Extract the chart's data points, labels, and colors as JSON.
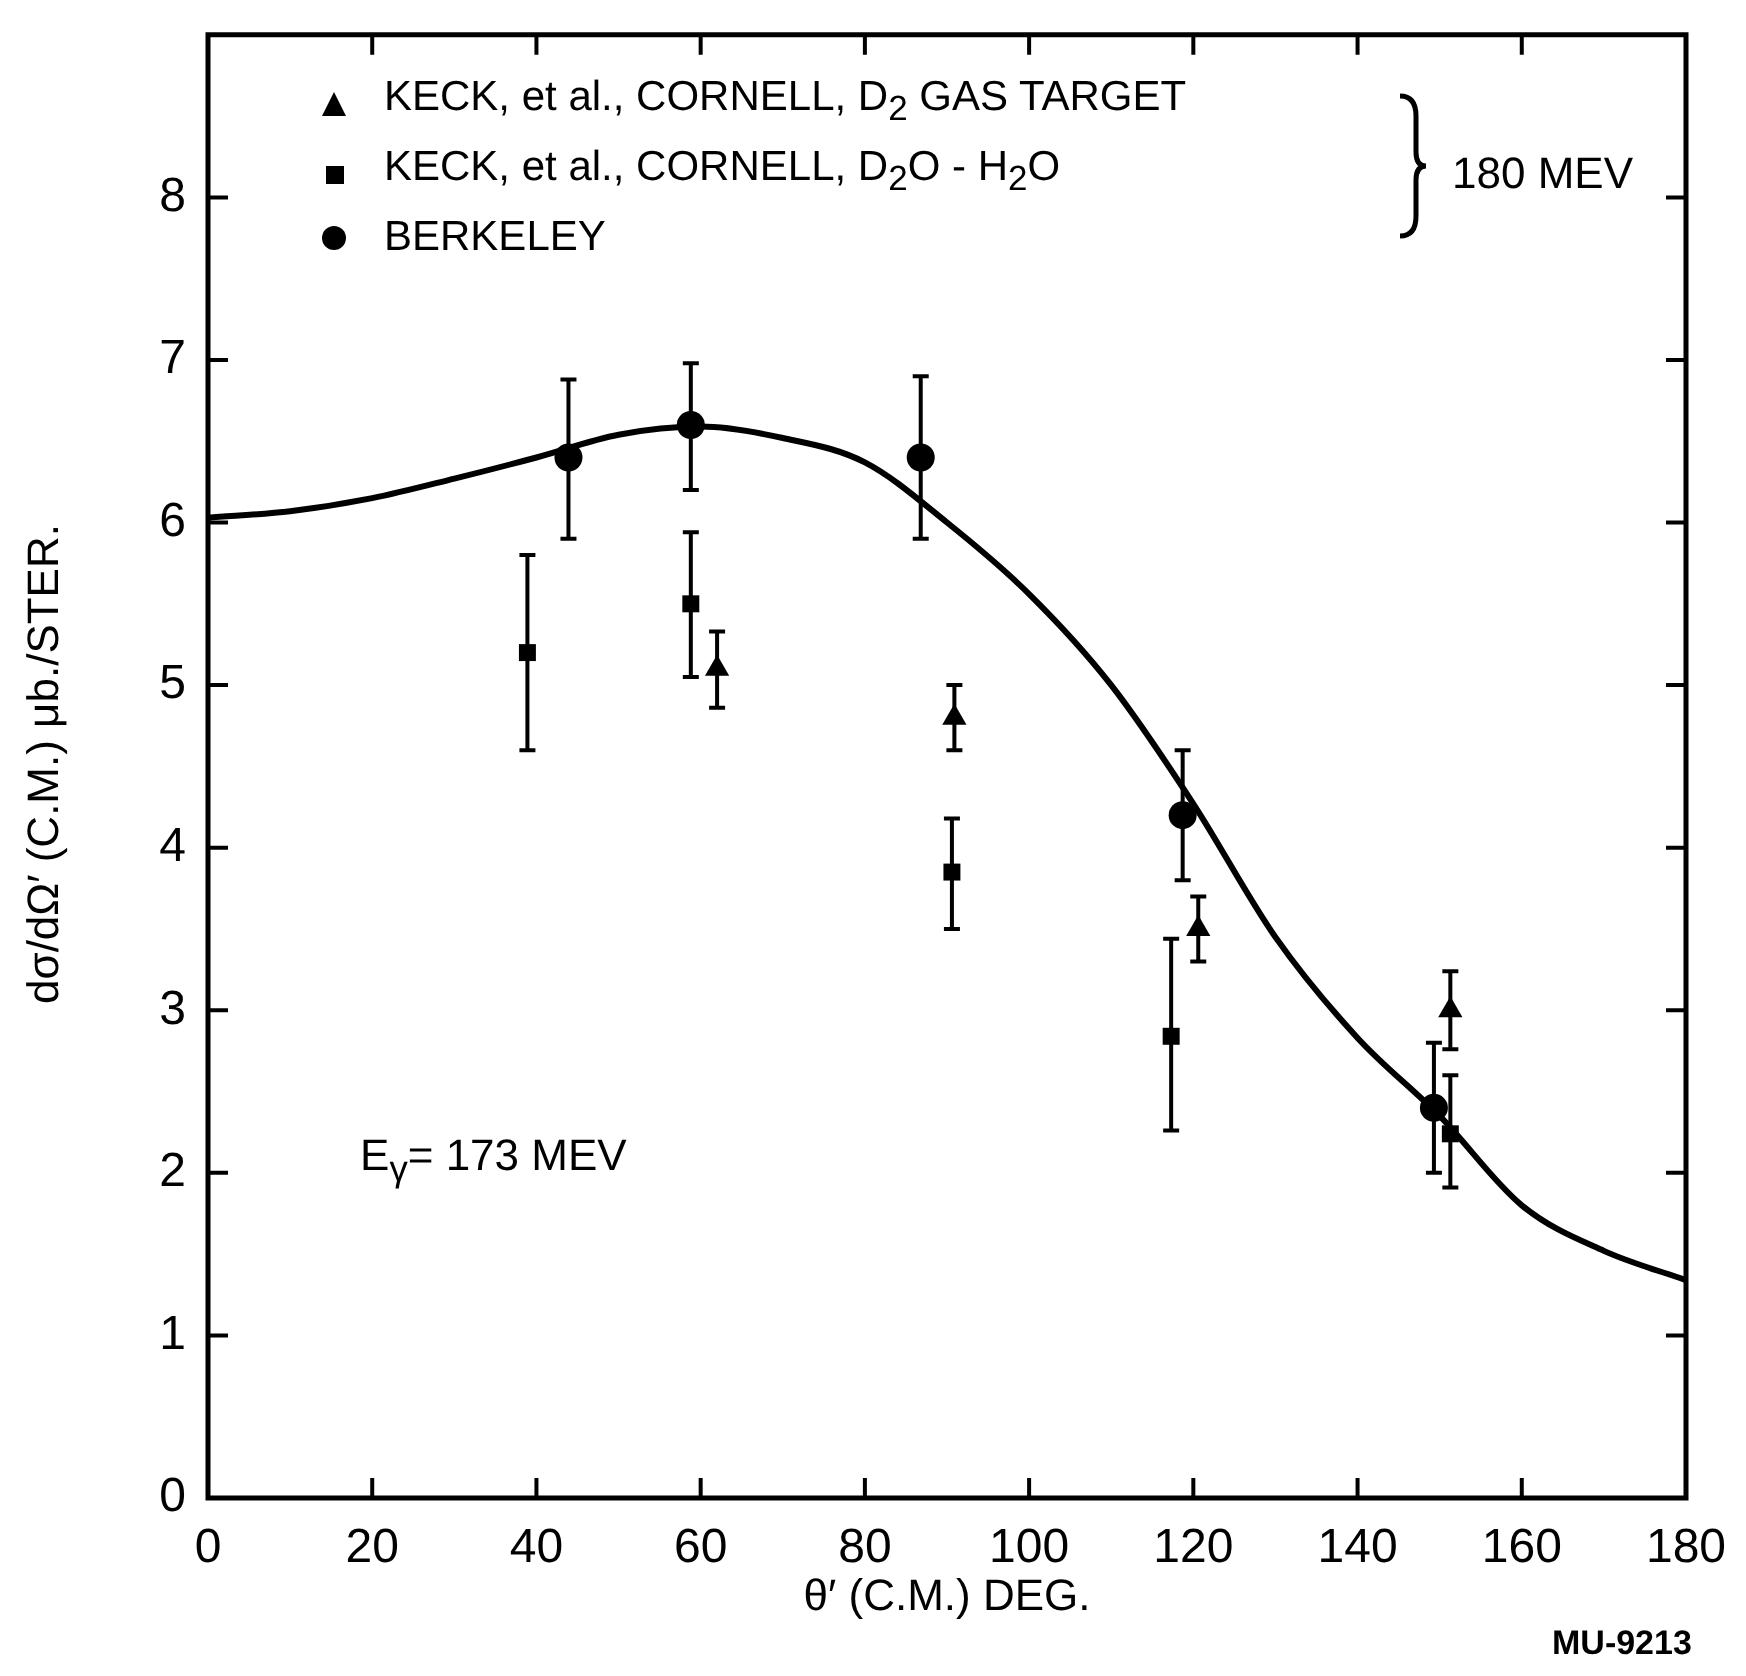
{
  "chart_data": {
    "type": "scatter",
    "xlabel": "θ′ (C.M.) DEG.",
    "ylabel": "dσ/dΩ′ (C.M.) μb./STER.",
    "xlim": [
      0,
      180
    ],
    "xticks": [
      0,
      20,
      40,
      60,
      80,
      100,
      120,
      140,
      160,
      180
    ],
    "ylim": [
      0,
      9
    ],
    "yticks": [
      0,
      1,
      2,
      3,
      4,
      5,
      6,
      7,
      8
    ],
    "grid": false,
    "legend": "top left",
    "annotations": [
      "180 MEV",
      "E$_{γ}$= 173 MEV",
      "MU-9213"
    ],
    "series": [
      {
        "name": "KECK, et al., CORNELL, D$_{2}$ GAS TARGET",
        "type": "scatter",
        "marker": "triangle",
        "color": "#000000",
        "x": [
          62,
          90.9,
          120.6,
          151.3
        ],
        "values": [
          5.1,
          4.8,
          3.5,
          3.0
        ],
        "errors": [
          [
            4.86,
            5.33
          ],
          [
            4.6,
            5.0
          ],
          [
            3.3,
            3.7
          ],
          [
            2.76,
            3.24
          ]
        ]
      },
      {
        "name": "KECK, et al., CORNELL, D$_{2}$O - H$_{2}$O",
        "type": "scatter",
        "marker": "square",
        "color": "#000000",
        "x": [
          38.9,
          58.8,
          90.6,
          117.3,
          151.3
        ],
        "values": [
          5.2,
          5.5,
          3.85,
          2.84,
          2.24
        ],
        "errors": [
          [
            4.6,
            5.8
          ],
          [
            5.05,
            5.94
          ],
          [
            3.5,
            4.18
          ],
          [
            2.26,
            3.44
          ],
          [
            1.91,
            2.6
          ]
        ]
      },
      {
        "name": "BERKELEY",
        "type": "scatter",
        "marker": "circle",
        "color": "#000000",
        "x": [
          43.9,
          58.8,
          86.8,
          118.7,
          149.3
        ],
        "values": [
          6.4,
          6.6,
          6.4,
          4.2,
          2.4
        ],
        "errors": [
          [
            5.9,
            6.88
          ],
          [
            6.2,
            6.98
          ],
          [
            5.9,
            6.9
          ],
          [
            3.8,
            4.6
          ],
          [
            2.0,
            2.8
          ]
        ]
      },
      {
        "type": "line",
        "marker": "none",
        "line_style": "solid",
        "color": "#000000",
        "x": [
          0,
          10,
          20,
          30,
          40,
          50,
          60,
          70,
          80,
          90,
          100,
          110,
          120,
          130,
          140,
          150,
          160,
          170,
          180
        ],
        "values": [
          6.03,
          6.07,
          6.15,
          6.27,
          6.4,
          6.54,
          6.59,
          6.52,
          6.37,
          6.0,
          5.56,
          5.0,
          4.27,
          3.45,
          2.83,
          2.35,
          1.8,
          1.52,
          1.34
        ]
      }
    ]
  }
}
